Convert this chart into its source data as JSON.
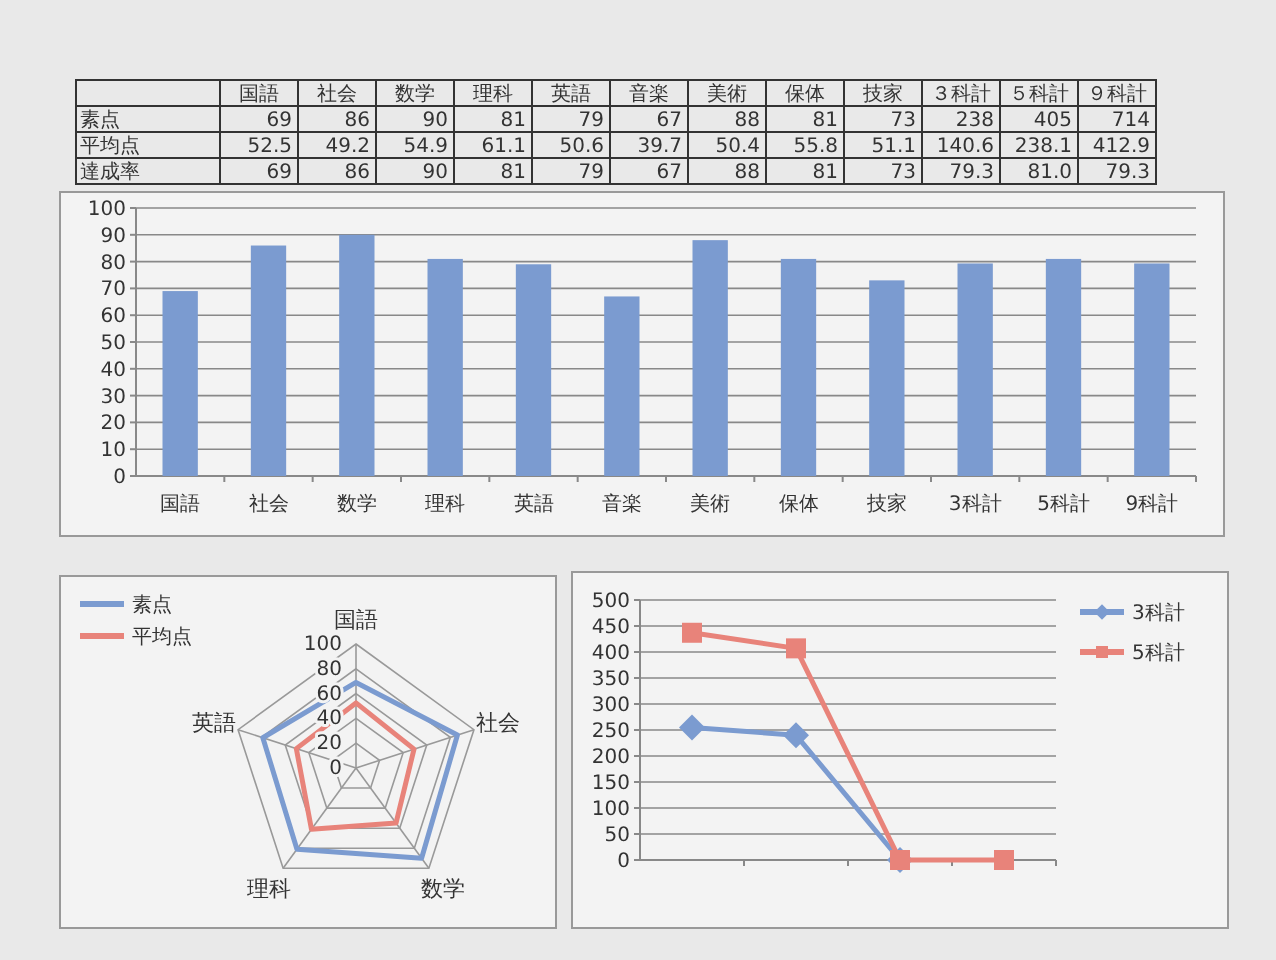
{
  "chart_data": [
    {
      "type": "other",
      "categories": [
        "国語",
        "社会",
        "数学",
        "理科",
        "英語",
        "音楽",
        "美術",
        "保体",
        "技家",
        "３科計",
        "５科計",
        "９科計"
      ],
      "y_categories": [
        "素点",
        "平均点",
        "達成率"
      ],
      "cell_labels": [
        [
          "69",
          "86",
          "90",
          "81",
          "79",
          "67",
          "88",
          "81",
          "73",
          "238",
          "405",
          "714"
        ],
        [
          "52.5",
          "49.2",
          "54.9",
          "61.1",
          "50.6",
          "39.7",
          "50.4",
          "55.8",
          "51.1",
          "140.6",
          "238.1",
          "412.9"
        ],
        [
          "69",
          "86",
          "90",
          "81",
          "79",
          "67",
          "88",
          "81",
          "73",
          "79.3",
          "81.0",
          "79.3"
        ]
      ]
    },
    {
      "type": "bar",
      "categories": [
        "国語",
        "社会",
        "数学",
        "理科",
        "英語",
        "音楽",
        "美術",
        "保体",
        "技家",
        "3科計",
        "5科計",
        "9科計"
      ],
      "values": [
        69,
        86,
        90,
        81,
        79,
        67,
        88,
        81,
        73,
        79.3,
        81.0,
        79.3
      ],
      "color": "#7b9bd0",
      "ylim": [
        0,
        100
      ],
      "yticks": [
        0,
        10,
        20,
        30,
        40,
        50,
        60,
        70,
        80,
        90,
        100
      ],
      "grid": "y"
    },
    {
      "type": "radar",
      "categories": [
        "国語",
        "社会",
        "数学",
        "理科",
        "英語"
      ],
      "series": [
        {
          "name": "素点",
          "color": "#7b9bd0",
          "values": [
            69,
            86,
            90,
            81,
            79
          ]
        },
        {
          "name": "平均点",
          "color": "#e8837a",
          "values": [
            52.5,
            49.2,
            54.9,
            61.1,
            50.6
          ]
        }
      ],
      "ylim": [
        0,
        100
      ],
      "yticks": [
        0,
        20,
        40,
        60,
        80,
        100
      ],
      "legend": "top left"
    },
    {
      "type": "line",
      "categories": [
        null,
        null,
        null,
        null
      ],
      "series": [
        {
          "name": "3科計",
          "color": "#7b9bd0",
          "marker": "diamond",
          "values": [
            255,
            240,
            0,
            null
          ]
        },
        {
          "name": "5科計",
          "color": "#e8837a",
          "marker": "square",
          "values": [
            437,
            407,
            0,
            0
          ]
        }
      ],
      "ylim": [
        0,
        500
      ],
      "yticks": [
        0,
        50,
        100,
        150,
        200,
        250,
        300,
        350,
        400,
        450,
        500
      ],
      "grid": "y",
      "legend": "right"
    }
  ]
}
